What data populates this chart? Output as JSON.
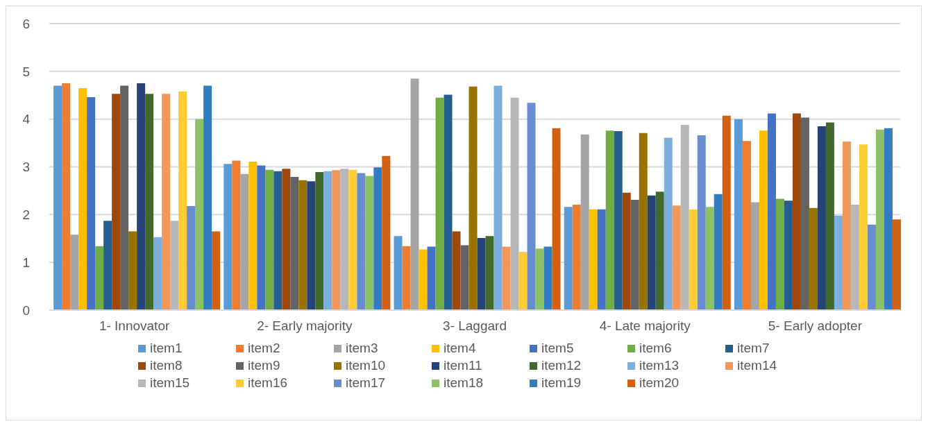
{
  "chart_data": {
    "type": "bar",
    "categories": [
      "1- Innovator",
      "2- Early majority",
      "3- Laggard",
      "4- Late majority",
      "5- Early adopter"
    ],
    "ylim": [
      0,
      6
    ],
    "yticks": [
      0,
      1,
      2,
      3,
      4,
      5,
      6
    ],
    "grid": "y",
    "legend": "bottom",
    "series": [
      {
        "name": "item1",
        "color": "#5b9bd5",
        "values": [
          4.7,
          3.06,
          1.55,
          2.16,
          4.0
        ]
      },
      {
        "name": "item2",
        "color": "#ed7d31",
        "values": [
          4.75,
          3.13,
          1.34,
          2.21,
          3.54
        ]
      },
      {
        "name": "item3",
        "color": "#a5a5a5",
        "values": [
          1.58,
          2.85,
          4.85,
          3.68,
          2.26
        ]
      },
      {
        "name": "item4",
        "color": "#ffc000",
        "values": [
          4.65,
          3.11,
          1.27,
          2.11,
          3.76
        ]
      },
      {
        "name": "item5",
        "color": "#4472c4",
        "values": [
          4.46,
          3.03,
          1.33,
          2.11,
          4.12
        ]
      },
      {
        "name": "item6",
        "color": "#70ad47",
        "values": [
          1.34,
          2.94,
          4.45,
          3.76,
          2.33
        ]
      },
      {
        "name": "item7",
        "color": "#255e91",
        "values": [
          1.87,
          2.91,
          4.51,
          3.75,
          2.29
        ]
      },
      {
        "name": "item8",
        "color": "#9e480e",
        "values": [
          4.53,
          2.96,
          1.65,
          2.46,
          4.12
        ]
      },
      {
        "name": "item9",
        "color": "#636363",
        "values": [
          4.7,
          2.79,
          1.36,
          2.31,
          4.03
        ]
      },
      {
        "name": "item10",
        "color": "#997300",
        "values": [
          1.65,
          2.72,
          4.68,
          3.71,
          2.14
        ]
      },
      {
        "name": "item11",
        "color": "#264478",
        "values": [
          4.75,
          2.7,
          1.51,
          2.4,
          3.85
        ]
      },
      {
        "name": "item12",
        "color": "#43682b",
        "values": [
          4.53,
          2.89,
          1.55,
          2.48,
          3.93
        ]
      },
      {
        "name": "item13",
        "color": "#7cafdd",
        "values": [
          1.53,
          2.91,
          4.7,
          3.61,
          1.98
        ]
      },
      {
        "name": "item14",
        "color": "#f1975a",
        "values": [
          4.53,
          2.93,
          1.33,
          2.19,
          3.53
        ]
      },
      {
        "name": "item15",
        "color": "#b7b7b7",
        "values": [
          1.87,
          2.96,
          4.45,
          3.88,
          2.21
        ]
      },
      {
        "name": "item16",
        "color": "#ffcd33",
        "values": [
          4.58,
          2.94,
          1.22,
          2.11,
          3.47
        ]
      },
      {
        "name": "item17",
        "color": "#698ed0",
        "values": [
          2.18,
          2.87,
          4.34,
          3.66,
          1.79
        ]
      },
      {
        "name": "item18",
        "color": "#8cc168",
        "values": [
          4.0,
          2.81,
          1.29,
          2.16,
          3.78
        ]
      },
      {
        "name": "item19",
        "color": "#327dc2",
        "values": [
          4.7,
          2.99,
          1.33,
          2.43,
          3.81
        ]
      },
      {
        "name": "item20",
        "color": "#d26012",
        "values": [
          1.65,
          3.23,
          3.81,
          4.07,
          1.9
        ]
      }
    ]
  }
}
